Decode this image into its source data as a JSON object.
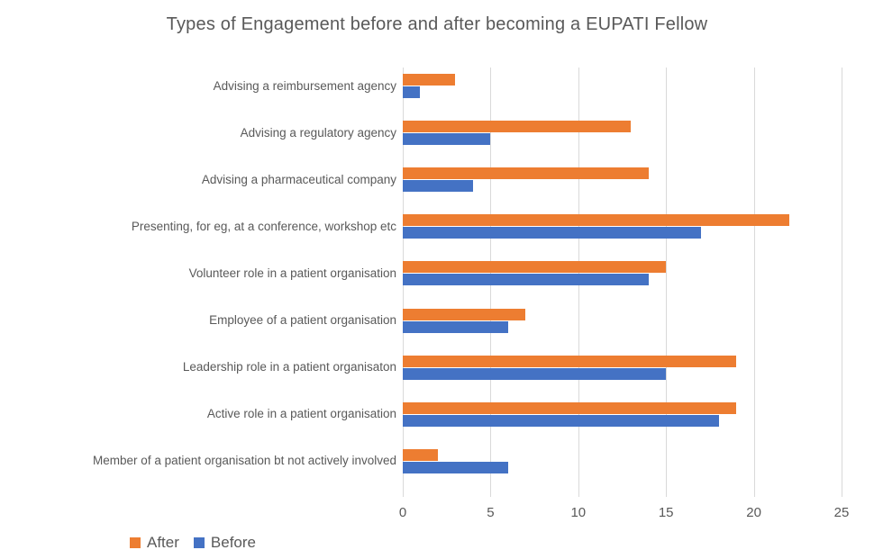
{
  "chart_data": {
    "type": "bar",
    "orientation": "horizontal",
    "title": "Types of Engagement before and after becoming a EUPATI Fellow",
    "categories": [
      "Advising a reimbursement agency",
      "Advising a regulatory agency",
      "Advising a pharmaceutical company",
      "Presenting, for eg, at a conference, workshop etc",
      "Volunteer role in a patient organisation",
      "Employee of a patient organisation",
      "Leadership role in a patient organisaton",
      "Active role in a patient organisation",
      "Member of a patient organisation bt not actively involved"
    ],
    "series": [
      {
        "name": "After",
        "color": "#ED7D31",
        "values": [
          3,
          13,
          14,
          22,
          15,
          7,
          19,
          19,
          2
        ]
      },
      {
        "name": "Before",
        "color": "#4472C4",
        "values": [
          1,
          5,
          4,
          17,
          14,
          6,
          15,
          18,
          6
        ]
      }
    ],
    "xlim": [
      0,
      25
    ],
    "xticks": [
      0,
      5,
      10,
      15,
      20,
      25
    ],
    "xlabel": "",
    "ylabel": "",
    "grid": "vertical",
    "legend_position": "bottom-left",
    "colors": {
      "text": "#595959",
      "gridline": "#D9D9D9",
      "background": "#FFFFFF"
    }
  }
}
